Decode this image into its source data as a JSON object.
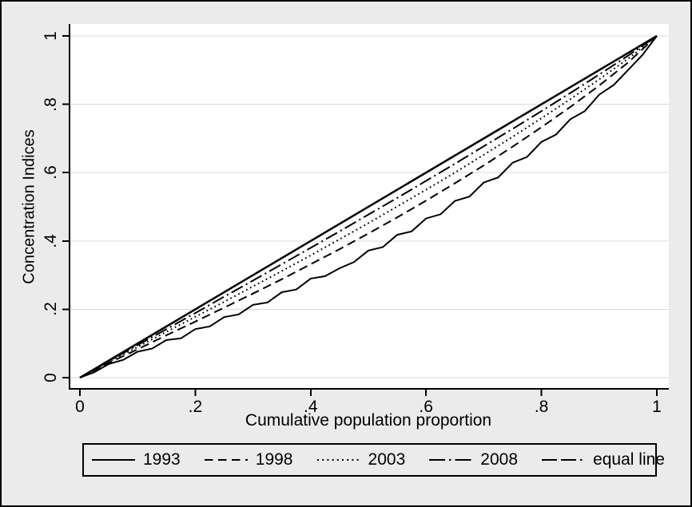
{
  "figure": {
    "background": "#ebebeb",
    "plot_background": "#ffffff",
    "grid_color": "#d9d9d9",
    "line_color": "#000000",
    "border_color": "#000000"
  },
  "chart_data": {
    "type": "line",
    "title": "",
    "xlabel": "Cumulative population proportion",
    "ylabel": "Concentration Indices",
    "xlim": [
      0,
      1
    ],
    "ylim": [
      0,
      1
    ],
    "grid": "horizontal",
    "legend_position": "bottom",
    "x_ticks": {
      "values": [
        0,
        0.2,
        0.4,
        0.6,
        0.8,
        1
      ],
      "labels": [
        "0",
        ".2",
        ".4",
        ".6",
        ".8",
        "1"
      ]
    },
    "y_ticks": {
      "values": [
        0,
        0.2,
        0.4,
        0.6,
        0.8,
        1
      ],
      "labels": [
        "0",
        ".2",
        ".4",
        ".6",
        ".8",
        "1"
      ]
    },
    "series": [
      {
        "name": "1993",
        "pattern": "solid",
        "legend_pattern": "solid",
        "stroke_width": 2,
        "x": [
          0,
          0.025,
          0.05,
          0.075,
          0.1,
          0.125,
          0.15,
          0.175,
          0.2,
          0.225,
          0.25,
          0.275,
          0.3,
          0.325,
          0.35,
          0.375,
          0.4,
          0.425,
          0.45,
          0.475,
          0.5,
          0.525,
          0.55,
          0.575,
          0.6,
          0.625,
          0.65,
          0.675,
          0.7,
          0.725,
          0.75,
          0.775,
          0.8,
          0.825,
          0.85,
          0.875,
          0.9,
          0.925,
          0.95,
          0.975,
          1
        ],
        "y": [
          0,
          0.016,
          0.04,
          0.052,
          0.076,
          0.085,
          0.11,
          0.115,
          0.142,
          0.15,
          0.177,
          0.185,
          0.213,
          0.22,
          0.25,
          0.258,
          0.29,
          0.297,
          0.32,
          0.338,
          0.372,
          0.382,
          0.418,
          0.428,
          0.466,
          0.478,
          0.517,
          0.53,
          0.571,
          0.586,
          0.629,
          0.646,
          0.69,
          0.711,
          0.756,
          0.78,
          0.828,
          0.856,
          0.9,
          0.944,
          1
        ]
      },
      {
        "name": "1998",
        "pattern": "dash",
        "legend_pattern": "dash",
        "stroke_width": 2,
        "x": [
          0,
          0.05,
          0.1,
          0.15,
          0.2,
          0.25,
          0.3,
          0.35,
          0.4,
          0.45,
          0.5,
          0.55,
          0.6,
          0.65,
          0.7,
          0.75,
          0.8,
          0.85,
          0.9,
          0.95,
          1
        ],
        "y": [
          0,
          0.043,
          0.083,
          0.124,
          0.164,
          0.205,
          0.246,
          0.288,
          0.332,
          0.376,
          0.422,
          0.469,
          0.518,
          0.569,
          0.621,
          0.676,
          0.733,
          0.792,
          0.855,
          0.922,
          1
        ]
      },
      {
        "name": "2003",
        "pattern": "dot",
        "legend_pattern": "dot",
        "stroke_width": 2,
        "x": [
          0,
          0.05,
          0.1,
          0.15,
          0.2,
          0.25,
          0.3,
          0.35,
          0.4,
          0.45,
          0.5,
          0.55,
          0.6,
          0.65,
          0.7,
          0.75,
          0.8,
          0.85,
          0.9,
          0.95,
          1
        ],
        "y": [
          0,
          0.046,
          0.09,
          0.134,
          0.178,
          0.222,
          0.267,
          0.312,
          0.358,
          0.405,
          0.452,
          0.501,
          0.55,
          0.6,
          0.652,
          0.705,
          0.759,
          0.815,
          0.873,
          0.933,
          1
        ]
      },
      {
        "name": "2008",
        "pattern": "dashdot",
        "legend_pattern": "dashdot",
        "stroke_width": 2,
        "x": [
          0,
          0.05,
          0.1,
          0.15,
          0.2,
          0.25,
          0.3,
          0.35,
          0.4,
          0.45,
          0.5,
          0.55,
          0.6,
          0.65,
          0.7,
          0.75,
          0.8,
          0.85,
          0.9,
          0.95,
          1
        ],
        "y": [
          0,
          0.048,
          0.095,
          0.142,
          0.189,
          0.237,
          0.284,
          0.332,
          0.38,
          0.428,
          0.477,
          0.526,
          0.576,
          0.626,
          0.677,
          0.728,
          0.78,
          0.833,
          0.887,
          0.942,
          1
        ]
      },
      {
        "name": "equal line",
        "pattern": "solid",
        "legend_pattern": "longdashdot",
        "stroke_width": 2.5,
        "x": [
          0,
          1
        ],
        "y": [
          0,
          1
        ]
      }
    ]
  }
}
